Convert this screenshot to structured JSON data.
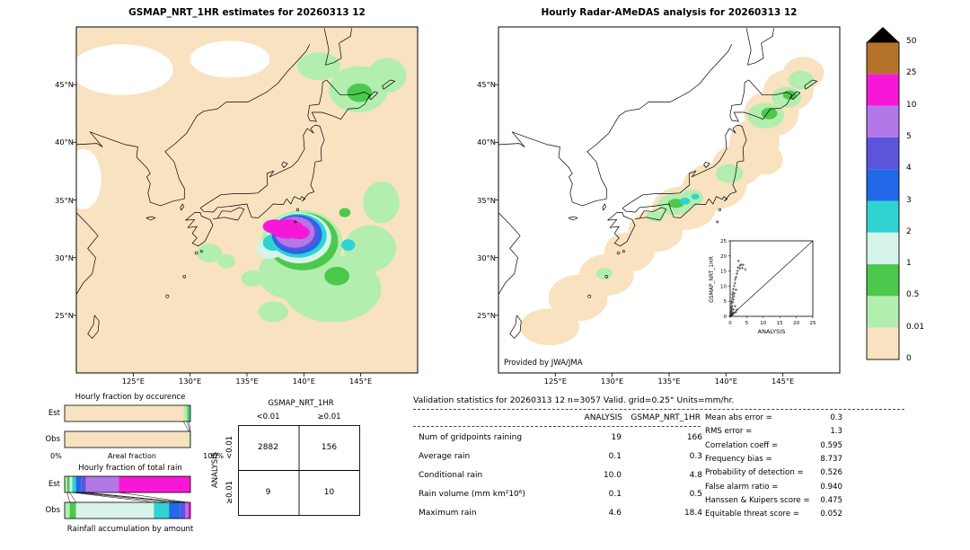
{
  "left_panel": {
    "title": "GSMAP_NRT_1HR estimates for 20260313 12",
    "x_ticks": [
      "125°E",
      "130°E",
      "135°E",
      "140°E",
      "145°E"
    ],
    "y_ticks": [
      "45°N",
      "40°N",
      "35°N",
      "30°N",
      "25°N"
    ]
  },
  "right_panel": {
    "title": "Hourly Radar-AMeDAS analysis for 20260313 12",
    "x_ticks": [
      "125°E",
      "130°E",
      "135°E",
      "140°E",
      "145°E"
    ],
    "y_ticks": [
      "45°N",
      "40°N",
      "35°N",
      "30°N",
      "25°N"
    ],
    "credit": "Provided by JWA/JMA"
  },
  "colorbar": {
    "tick_labels": [
      "50",
      "25",
      "10",
      "5",
      "4",
      "3",
      "2",
      "1",
      "0.5",
      "0.01",
      "0"
    ],
    "colors_top_to_bottom": [
      "#b5722a",
      "#f618d6",
      "#b377e8",
      "#5c55dc",
      "#2268e8",
      "#30d2d2",
      "#d6f4ea",
      "#4cc84c",
      "#b2eeae",
      "#f8e2c0"
    ],
    "overflow_color": "#000000"
  },
  "inset": {
    "xlabel": "ANALYSIS",
    "ylabel": "GSMAP_NRT_1HR",
    "tick_labels": [
      "0",
      "5",
      "10",
      "15",
      "20",
      "25"
    ],
    "axis_max": 25
  },
  "mini_charts": {
    "occurrence_title": "Hourly fraction by occurence",
    "total_rain_title": "Hourly fraction of total rain",
    "accumulation_title": "Rainfall accumulation by amount",
    "areal_label": "Areal fraction",
    "pct0": "0%",
    "pct100": "100%",
    "est_label": "Est",
    "obs_label": "Obs"
  },
  "contingency": {
    "col_group": "GSMAP_NRT_1HR",
    "row_group": "ANALYSIS",
    "col_headers": [
      "<0.01",
      "≥0.01"
    ],
    "row_headers": [
      "<0.01",
      "≥0.01"
    ],
    "values": [
      [
        "2882",
        "156"
      ],
      [
        "9",
        "10"
      ]
    ]
  },
  "stats": {
    "title": "Validation statistics for 20260313 12  n=3057 Valid. grid=0.25° Units=mm/hr.",
    "col1": "ANALYSIS",
    "col2": "GSMAP_NRT_1HR",
    "rows": [
      {
        "label": "Num of gridpoints raining",
        "a": "19",
        "g": "166"
      },
      {
        "label": "Average rain",
        "a": "0.1",
        "g": "0.3"
      },
      {
        "label": "Conditional rain",
        "a": "10.0",
        "g": "4.8"
      },
      {
        "label": "Rain volume (mm km²10⁶)",
        "a": "0.1",
        "g": "0.5"
      },
      {
        "label": "Maximum rain",
        "a": "4.6",
        "g": "18.4"
      }
    ],
    "scores": [
      {
        "label": "Mean abs error =",
        "value": "0.3"
      },
      {
        "label": "RMS error =",
        "value": "1.3"
      },
      {
        "label": "Correlation coeff =",
        "value": "0.595"
      },
      {
        "label": "Frequency bias =",
        "value": "8.737"
      },
      {
        "label": "Probability of detection =",
        "value": "0.526"
      },
      {
        "label": "False alarm ratio =",
        "value": "0.940"
      },
      {
        "label": "Hanssen & Kuipers score =",
        "value": "0.475"
      },
      {
        "label": "Equitable threat score =",
        "value": "0.052"
      }
    ]
  },
  "chart_data": [
    {
      "type": "heatmap",
      "name": "gsmap_precip_map",
      "title": "GSMAP_NRT_1HR estimates for 20260313 12",
      "units": "mm/hr",
      "lon_range": [
        120,
        150
      ],
      "lat_range": [
        20,
        50
      ],
      "x_tick_values": [
        125,
        130,
        135,
        140,
        145
      ],
      "y_tick_values": [
        45,
        40,
        35,
        30,
        25
      ],
      "levels_mm_hr": [
        0,
        0.01,
        0.5,
        1,
        2,
        3,
        4,
        5,
        10,
        25,
        50
      ],
      "background": "#f8e2c0",
      "blobs": [
        {
          "lon": 124.0,
          "lat": 46.3,
          "rx": 4.5,
          "ry": 2.2,
          "color": "#ffffff"
        },
        {
          "lon": 133.5,
          "lat": 47.2,
          "rx": 3.5,
          "ry": 1.6,
          "color": "#ffffff"
        },
        {
          "lon": 120.6,
          "lat": 36.8,
          "rx": 1.6,
          "ry": 2.6,
          "color": "#ffffff"
        },
        {
          "lon": 142.5,
          "lat": 27.3,
          "rx": 4.3,
          "ry": 2.9,
          "color": "#b2eeae"
        },
        {
          "lon": 138.8,
          "lat": 28.6,
          "rx": 2.8,
          "ry": 2.2,
          "color": "#b2eeae"
        },
        {
          "lon": 145.8,
          "lat": 30.8,
          "rx": 2.3,
          "ry": 2.0,
          "color": "#b2eeae"
        },
        {
          "lon": 146.8,
          "lat": 34.8,
          "rx": 1.6,
          "ry": 1.8,
          "color": "#b2eeae"
        },
        {
          "lon": 144.8,
          "lat": 44.6,
          "rx": 2.6,
          "ry": 2.0,
          "color": "#b2eeae"
        },
        {
          "lon": 141.3,
          "lat": 46.6,
          "rx": 1.9,
          "ry": 1.2,
          "color": "#b2eeae"
        },
        {
          "lon": 147.3,
          "lat": 45.8,
          "rx": 1.7,
          "ry": 1.5,
          "color": "#b2eeae"
        },
        {
          "lon": 131.7,
          "lat": 30.4,
          "rx": 1.1,
          "ry": 0.8,
          "color": "#b2eeae"
        },
        {
          "lon": 133.2,
          "lat": 29.7,
          "rx": 0.8,
          "ry": 0.6,
          "color": "#b2eeae"
        },
        {
          "lon": 137.3,
          "lat": 25.3,
          "rx": 1.3,
          "ry": 0.9,
          "color": "#b2eeae"
        },
        {
          "lon": 135.5,
          "lat": 28.2,
          "rx": 1.0,
          "ry": 0.7,
          "color": "#b2eeae"
        },
        {
          "lon": 139.8,
          "lat": 31.2,
          "rx": 3.6,
          "ry": 2.9,
          "color": "#b2eeae"
        },
        {
          "lon": 139.9,
          "lat": 31.4,
          "rx": 3.1,
          "ry": 2.5,
          "color": "#4cc84c"
        },
        {
          "lon": 142.9,
          "lat": 28.4,
          "rx": 1.1,
          "ry": 0.8,
          "color": "#4cc84c"
        },
        {
          "lon": 144.9,
          "lat": 44.3,
          "rx": 1.1,
          "ry": 0.8,
          "color": "#4cc84c"
        },
        {
          "lon": 143.6,
          "lat": 33.9,
          "rx": 0.5,
          "ry": 0.4,
          "color": "#4cc84c"
        },
        {
          "lon": 139.6,
          "lat": 31.7,
          "rx": 2.8,
          "ry": 2.2,
          "color": "#d6f4ea"
        },
        {
          "lon": 137.0,
          "lat": 30.8,
          "rx": 1.2,
          "ry": 0.9,
          "color": "#d6f4ea"
        },
        {
          "lon": 139.5,
          "lat": 31.9,
          "rx": 2.5,
          "ry": 1.9,
          "color": "#30d2d2"
        },
        {
          "lon": 137.3,
          "lat": 31.3,
          "rx": 0.9,
          "ry": 0.7,
          "color": "#30d2d2"
        },
        {
          "lon": 143.9,
          "lat": 31.1,
          "rx": 0.6,
          "ry": 0.5,
          "color": "#30d2d2"
        },
        {
          "lon": 139.4,
          "lat": 32.0,
          "rx": 2.2,
          "ry": 1.7,
          "color": "#2268e8"
        },
        {
          "lon": 139.3,
          "lat": 32.1,
          "rx": 1.95,
          "ry": 1.5,
          "color": "#5c55dc"
        },
        {
          "lon": 139.2,
          "lat": 32.2,
          "rx": 1.75,
          "ry": 1.35,
          "color": "#b377e8"
        },
        {
          "lon": 138.5,
          "lat": 32.5,
          "rx": 1.5,
          "ry": 0.85,
          "color": "#f618d6"
        },
        {
          "lon": 137.4,
          "lat": 32.7,
          "rx": 1.0,
          "ry": 0.6,
          "color": "#f618d6"
        },
        {
          "lon": 139.6,
          "lat": 32.2,
          "rx": 0.9,
          "ry": 0.6,
          "color": "#f618d6"
        }
      ]
    },
    {
      "type": "heatmap",
      "name": "radar_amedas_map",
      "title": "Hourly Radar-AMeDAS analysis for 20260313 12",
      "units": "mm/hr",
      "lon_range": [
        120,
        150
      ],
      "lat_range": [
        20,
        50
      ],
      "x_tick_values": [
        125,
        130,
        135,
        140,
        145
      ],
      "y_tick_values": [
        45,
        40,
        35,
        30,
        25
      ],
      "levels_mm_hr": [
        0,
        0.01,
        0.5,
        1,
        2,
        3,
        4,
        5,
        10,
        25,
        50
      ],
      "background": "#ffffff",
      "blobs": [
        {
          "lon": 124.5,
          "lat": 24.0,
          "rx": 2.6,
          "ry": 1.6,
          "color": "#f8e2c0"
        },
        {
          "lon": 127.0,
          "lat": 26.5,
          "rx": 2.6,
          "ry": 2.0,
          "color": "#f8e2c0"
        },
        {
          "lon": 129.5,
          "lat": 28.5,
          "rx": 2.4,
          "ry": 1.8,
          "color": "#f8e2c0"
        },
        {
          "lon": 131.5,
          "lat": 30.5,
          "rx": 2.2,
          "ry": 1.7,
          "color": "#f8e2c0"
        },
        {
          "lon": 133.8,
          "lat": 32.3,
          "rx": 2.4,
          "ry": 1.8,
          "color": "#f8e2c0"
        },
        {
          "lon": 136.3,
          "lat": 34.3,
          "rx": 2.8,
          "ry": 1.9,
          "color": "#f8e2c0"
        },
        {
          "lon": 139.0,
          "lat": 36.2,
          "rx": 2.8,
          "ry": 2.0,
          "color": "#f8e2c0"
        },
        {
          "lon": 141.0,
          "lat": 38.0,
          "rx": 2.2,
          "ry": 1.8,
          "color": "#f8e2c0"
        },
        {
          "lon": 142.5,
          "lat": 40.0,
          "rx": 2.2,
          "ry": 2.0,
          "color": "#f8e2c0"
        },
        {
          "lon": 144.0,
          "lat": 42.5,
          "rx": 2.4,
          "ry": 2.0,
          "color": "#f8e2c0"
        },
        {
          "lon": 145.5,
          "lat": 44.5,
          "rx": 2.2,
          "ry": 1.8,
          "color": "#f8e2c0"
        },
        {
          "lon": 146.8,
          "lat": 46.0,
          "rx": 1.8,
          "ry": 1.4,
          "color": "#f8e2c0"
        },
        {
          "lon": 138.0,
          "lat": 35.3,
          "rx": 2.0,
          "ry": 1.5,
          "color": "#f8e2c0"
        },
        {
          "lon": 143.5,
          "lat": 38.5,
          "rx": 1.5,
          "ry": 1.3,
          "color": "#f8e2c0"
        },
        {
          "lon": 135.5,
          "lat": 34.6,
          "rx": 1.5,
          "ry": 0.9,
          "color": "#b2eeae"
        },
        {
          "lon": 137.0,
          "lat": 35.2,
          "rx": 1.0,
          "ry": 0.7,
          "color": "#b2eeae"
        },
        {
          "lon": 140.3,
          "lat": 37.3,
          "rx": 1.2,
          "ry": 0.8,
          "color": "#b2eeae"
        },
        {
          "lon": 143.5,
          "lat": 42.3,
          "rx": 1.6,
          "ry": 1.1,
          "color": "#b2eeae"
        },
        {
          "lon": 145.3,
          "lat": 43.9,
          "rx": 1.3,
          "ry": 0.9,
          "color": "#b2eeae"
        },
        {
          "lon": 146.6,
          "lat": 45.4,
          "rx": 1.1,
          "ry": 0.8,
          "color": "#b2eeae"
        },
        {
          "lon": 133.8,
          "lat": 33.6,
          "rx": 0.8,
          "ry": 0.5,
          "color": "#b2eeae"
        },
        {
          "lon": 129.3,
          "lat": 28.6,
          "rx": 0.7,
          "ry": 0.5,
          "color": "#b2eeae"
        },
        {
          "lon": 135.6,
          "lat": 34.7,
          "rx": 0.7,
          "ry": 0.4,
          "color": "#4cc84c"
        },
        {
          "lon": 143.8,
          "lat": 42.5,
          "rx": 0.7,
          "ry": 0.5,
          "color": "#4cc84c"
        },
        {
          "lon": 145.6,
          "lat": 44.1,
          "rx": 0.6,
          "ry": 0.4,
          "color": "#4cc84c"
        },
        {
          "lon": 136.4,
          "lat": 34.9,
          "rx": 0.45,
          "ry": 0.3,
          "color": "#30d2d2"
        },
        {
          "lon": 137.3,
          "lat": 35.3,
          "rx": 0.35,
          "ry": 0.25,
          "color": "#30d2d2"
        }
      ]
    },
    {
      "type": "scatter",
      "name": "inset_scatter",
      "xlabel": "ANALYSIS",
      "ylabel": "GSMAP_NRT_1HR",
      "xlim": [
        0,
        25
      ],
      "ylim": [
        0,
        25
      ],
      "points": [
        [
          0.1,
          0.2
        ],
        [
          0.2,
          0.5
        ],
        [
          0.2,
          1.2
        ],
        [
          0.3,
          2.0
        ],
        [
          0.3,
          3.1
        ],
        [
          0.4,
          1.6
        ],
        [
          0.4,
          4.2
        ],
        [
          0.5,
          0.4
        ],
        [
          0.5,
          2.6
        ],
        [
          0.5,
          5.0
        ],
        [
          0.6,
          3.4
        ],
        [
          0.6,
          6.1
        ],
        [
          0.7,
          1.0
        ],
        [
          0.7,
          7.2
        ],
        [
          0.8,
          4.6
        ],
        [
          0.8,
          8.0
        ],
        [
          0.9,
          5.5
        ],
        [
          1.0,
          2.2
        ],
        [
          1.0,
          9.0
        ],
        [
          1.1,
          6.6
        ],
        [
          1.2,
          10.1
        ],
        [
          1.3,
          7.6
        ],
        [
          1.4,
          11.0
        ],
        [
          1.5,
          3.3
        ],
        [
          1.5,
          12.2
        ],
        [
          1.7,
          13.0
        ],
        [
          1.8,
          8.8
        ],
        [
          2.0,
          14.1
        ],
        [
          2.2,
          15.0
        ],
        [
          2.4,
          16.2
        ],
        [
          2.5,
          18.4
        ],
        [
          2.8,
          15.8
        ],
        [
          3.0,
          16.8
        ],
        [
          3.3,
          17.2
        ],
        [
          3.6,
          16.0
        ],
        [
          4.0,
          17.0
        ],
        [
          4.6,
          15.5
        ],
        [
          0.3,
          0.3
        ],
        [
          1.0,
          1.0
        ],
        [
          2.0,
          2.1
        ],
        [
          0.8,
          0.9
        ],
        [
          1.6,
          1.4
        ]
      ]
    },
    {
      "type": "bar",
      "name": "occurrence_fractions",
      "title": "Hourly fraction by occurence",
      "categories": [
        "Est",
        "Obs"
      ],
      "colors": [
        "#f8e2c0",
        "#b2eeae",
        "#4cc84c",
        "#30d2d2"
      ],
      "series": [
        {
          "name": "Est",
          "values": [
            0.945,
            0.03,
            0.015,
            0.01
          ]
        },
        {
          "name": "Obs",
          "values": [
            0.988,
            0.008,
            0.004,
            0.0
          ]
        }
      ]
    },
    {
      "type": "bar",
      "name": "total_rain_fractions",
      "title": "Hourly fraction of total rain",
      "categories": [
        "Est",
        "Obs"
      ],
      "colors": [
        "#b2eeae",
        "#4cc84c",
        "#d6f4ea",
        "#30d2d2",
        "#2268e8",
        "#5c55dc",
        "#b377e8",
        "#f618d6"
      ],
      "series": [
        {
          "name": "Est",
          "values": [
            0.02,
            0.02,
            0.02,
            0.03,
            0.04,
            0.04,
            0.26,
            0.57
          ]
        },
        {
          "name": "Obs",
          "values": [
            0.04,
            0.05,
            0.62,
            0.12,
            0.09,
            0.04,
            0.02,
            0.02
          ]
        }
      ]
    }
  ]
}
